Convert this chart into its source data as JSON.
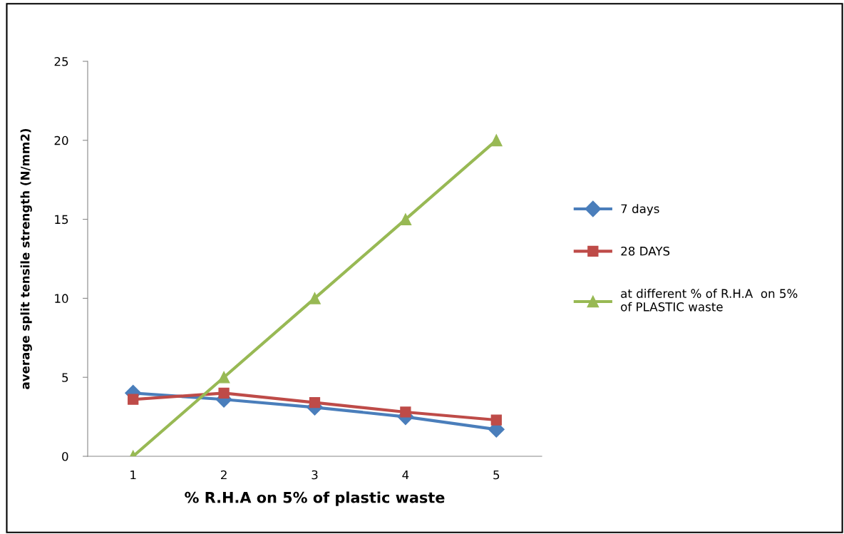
{
  "chart_data": {
    "type": "line",
    "xlabel": "% R.H.A on 5% of plastic waste",
    "ylabel": "average split tensile strength (N/mm2)",
    "categories": [
      "1",
      "2",
      "3",
      "4",
      "5"
    ],
    "series": [
      {
        "name": "7 days",
        "color": "#4a7ebb",
        "marker": "diamond",
        "values": [
          4.0,
          3.6,
          3.1,
          2.5,
          1.7
        ]
      },
      {
        "name": "28 DAYS",
        "color": "#be4b48",
        "marker": "square",
        "values": [
          3.6,
          4.0,
          3.4,
          2.8,
          2.3
        ]
      },
      {
        "name": "at different % of R.H.A  on 5%\nof PLASTIC waste",
        "color": "#98b954",
        "marker": "triangle",
        "values": [
          0,
          5,
          10,
          15,
          20
        ]
      }
    ],
    "ylim": [
      0,
      25
    ],
    "yticks": [
      0,
      5,
      10,
      15,
      20,
      25
    ],
    "grid": false,
    "legend": "right",
    "line_style": "solid"
  }
}
